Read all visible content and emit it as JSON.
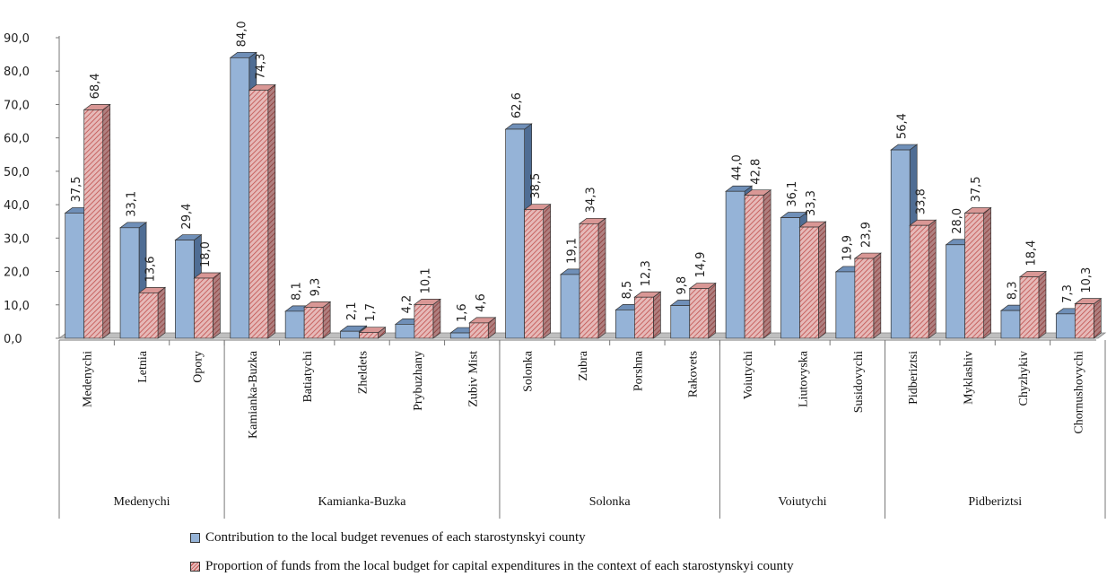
{
  "chart_data": {
    "type": "bar",
    "ylim": [
      0,
      90
    ],
    "yticks": [
      "0,0",
      "10,0",
      "20,0",
      "30,0",
      "40,0",
      "50,0",
      "60,0",
      "70,0",
      "80,0",
      "90,0"
    ],
    "categories": [
      "Medenychi",
      "Letnia",
      "Opory",
      "Kamianka-Buzka",
      "Batiatychi",
      "Zheldets",
      "Prybuzhany",
      "Zubiv Mist",
      "Solonka",
      "Zubra",
      "Porshna",
      "Rakovets",
      "Voiutychi",
      "Liutovyska",
      "Susidovychi",
      "Pidberiztsi",
      "Myklashiv",
      "Chyzhykiv",
      "Chornushovychi"
    ],
    "groups": [
      {
        "name": "Medenychi",
        "count": 3
      },
      {
        "name": "Kamianka-Buzka",
        "count": 5
      },
      {
        "name": "Solonka",
        "count": 4
      },
      {
        "name": "Voiutychi",
        "count": 3
      },
      {
        "name": "Pidberiztsi",
        "count": 4
      }
    ],
    "series": [
      {
        "name": "Contribution to the local budget revenues of each  starostynskyi county",
        "color": "#95b3d7",
        "values": [
          37.5,
          33.1,
          29.4,
          84.0,
          8.1,
          2.1,
          4.2,
          1.6,
          62.6,
          19.1,
          8.5,
          9.8,
          44.0,
          36.1,
          19.9,
          56.4,
          28.0,
          8.3,
          7.3
        ],
        "labels": [
          "37,5",
          "33,1",
          "29,4",
          "84,0",
          "8,1",
          "2,1",
          "4,2",
          "1,6",
          "62,6",
          "19,1",
          "8,5",
          "9,8",
          "44,0",
          "36,1",
          "19,9",
          "56,4",
          "28,0",
          "8,3",
          "7,3"
        ]
      },
      {
        "name": "Proportion of funds from the local budget for capital expenditures in the context of each starostynskyi county",
        "color": "#c0504d",
        "values": [
          68.4,
          13.6,
          18.0,
          74.3,
          9.3,
          1.7,
          10.1,
          4.6,
          38.5,
          34.3,
          12.3,
          14.9,
          42.8,
          33.3,
          23.9,
          33.8,
          37.5,
          18.4,
          10.3
        ],
        "labels": [
          "68,4",
          "13,6",
          "18,0",
          "74,3",
          "9,3",
          "1,7",
          "10,1",
          "4,6",
          "38,5",
          "34,3",
          "12,3",
          "14,9",
          "42,8",
          "33,3",
          "23,9",
          "33,8",
          "37,5",
          "18,4",
          "10,3"
        ]
      }
    ],
    "legend_position": "bottom"
  }
}
